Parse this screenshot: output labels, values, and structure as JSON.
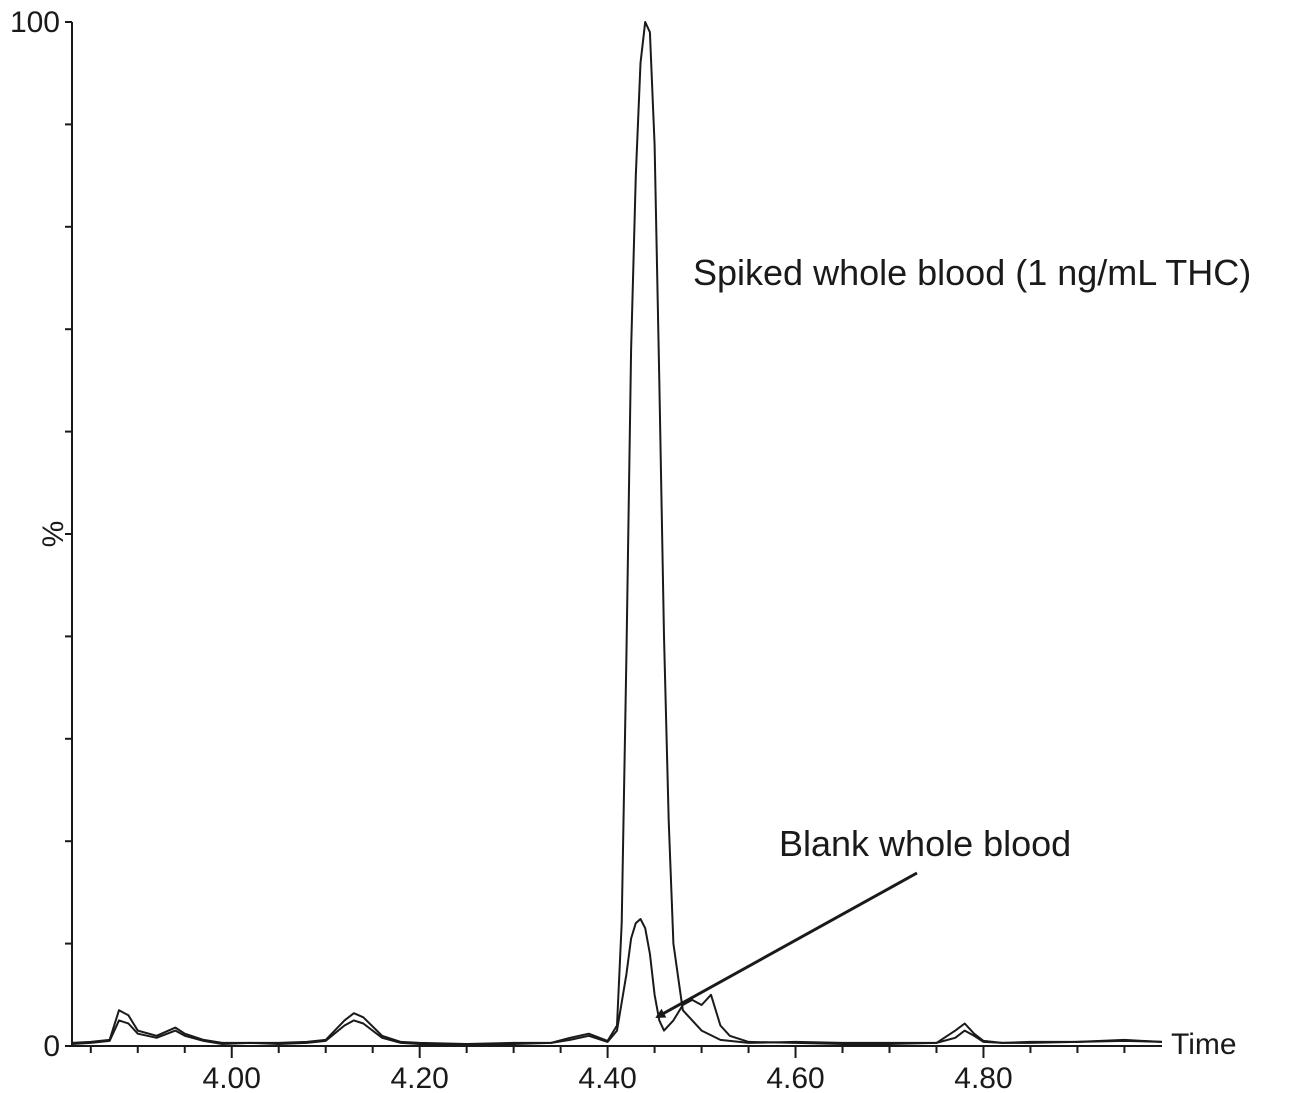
{
  "chart_data": {
    "type": "line",
    "title": "",
    "xlabel": "Time",
    "ylabel": "%",
    "xlim": [
      3.83,
      4.99
    ],
    "ylim": [
      0,
      100
    ],
    "x_ticks": [
      "4.00",
      "4.20",
      "4.40",
      "4.60",
      "4.80"
    ],
    "y_ticks": [
      "0",
      "100"
    ],
    "grid": false,
    "annotations": [
      {
        "text": "Spiked whole blood (1 ng/mL THC)"
      },
      {
        "text": "Blank whole blood"
      }
    ],
    "series": [
      {
        "name": "Spiked whole blood (1 ng/mL THC)",
        "x": [
          3.83,
          3.85,
          3.87,
          3.88,
          3.89,
          3.9,
          3.92,
          3.94,
          3.95,
          3.97,
          3.99,
          4.02,
          4.05,
          4.08,
          4.1,
          4.12,
          4.13,
          4.14,
          4.16,
          4.18,
          4.2,
          4.25,
          4.3,
          4.34,
          4.36,
          4.38,
          4.4,
          4.41,
          4.415,
          4.42,
          4.425,
          4.43,
          4.435,
          4.44,
          4.445,
          4.45,
          4.455,
          4.46,
          4.465,
          4.47,
          4.48,
          4.5,
          4.52,
          4.55,
          4.6,
          4.65,
          4.7,
          4.75,
          4.77,
          4.78,
          4.79,
          4.8,
          4.82,
          4.85,
          4.9,
          4.95,
          4.99
        ],
        "y": [
          0.3,
          0.4,
          0.6,
          3.5,
          3.0,
          1.5,
          1.0,
          1.8,
          1.2,
          0.6,
          0.3,
          0.3,
          0.3,
          0.4,
          0.6,
          2.5,
          3.2,
          2.8,
          1.0,
          0.4,
          0.3,
          0.2,
          0.3,
          0.3,
          0.8,
          1.2,
          0.5,
          2.0,
          12.0,
          38.0,
          68.0,
          85.0,
          96.0,
          100.0,
          99.0,
          88.0,
          65.0,
          40.0,
          22.0,
          10.0,
          3.5,
          1.5,
          0.6,
          0.3,
          0.4,
          0.3,
          0.3,
          0.3,
          0.8,
          1.5,
          1.0,
          0.4,
          0.3,
          0.4,
          0.4,
          0.5,
          0.4
        ]
      },
      {
        "name": "Blank whole blood",
        "x": [
          3.83,
          3.85,
          3.87,
          3.88,
          3.89,
          3.9,
          3.92,
          3.94,
          3.95,
          3.97,
          3.99,
          4.02,
          4.05,
          4.08,
          4.1,
          4.12,
          4.13,
          4.14,
          4.16,
          4.18,
          4.2,
          4.25,
          4.3,
          4.34,
          4.36,
          4.38,
          4.4,
          4.41,
          4.42,
          4.425,
          4.43,
          4.435,
          4.44,
          4.445,
          4.45,
          4.455,
          4.46,
          4.47,
          4.48,
          4.49,
          4.5,
          4.51,
          4.52,
          4.53,
          4.55,
          4.6,
          4.65,
          4.7,
          4.75,
          4.77,
          4.78,
          4.79,
          4.8,
          4.82,
          4.85,
          4.9,
          4.95,
          4.99
        ],
        "y": [
          0.2,
          0.3,
          0.5,
          2.5,
          2.2,
          1.2,
          0.8,
          1.5,
          1.0,
          0.5,
          0.2,
          0.3,
          0.2,
          0.3,
          0.5,
          2.0,
          2.5,
          2.2,
          0.8,
          0.3,
          0.2,
          0.2,
          0.2,
          0.3,
          0.6,
          1.0,
          0.4,
          1.5,
          7.0,
          10.5,
          12.0,
          12.4,
          11.5,
          9.0,
          5.0,
          2.5,
          1.5,
          2.5,
          4.0,
          4.5,
          4.0,
          5.0,
          2.0,
          1.0,
          0.4,
          0.3,
          0.2,
          0.2,
          0.3,
          1.5,
          2.2,
          1.2,
          0.5,
          0.3,
          0.3,
          0.4,
          0.6,
          0.4
        ]
      }
    ]
  }
}
